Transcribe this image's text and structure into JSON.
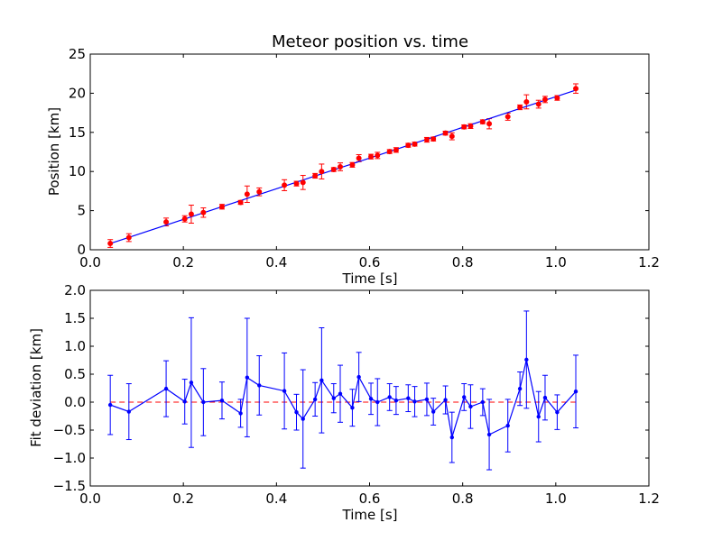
{
  "chart_data": [
    {
      "type": "scatter",
      "title": "Meteor position vs. time",
      "xlabel": "Time [s]",
      "ylabel": "Position [km]",
      "xlim": [
        0.0,
        1.2
      ],
      "ylim": [
        0,
        25
      ],
      "x_ticks": [
        "0.0",
        "0.2",
        "0.4",
        "0.6",
        "0.8",
        "1.0",
        "1.2"
      ],
      "y_ticks": [
        "0",
        "5",
        "10",
        "15",
        "20",
        "25"
      ],
      "grid": false,
      "colors": {
        "points": "#ff0000",
        "errorbars": "#ff0000",
        "fit": "#0000ff"
      },
      "series": [
        {
          "kind": "errorbar-points",
          "x": [
            0.043,
            0.083,
            0.163,
            0.203,
            0.217,
            0.243,
            0.283,
            0.323,
            0.337,
            0.363,
            0.417,
            0.443,
            0.457,
            0.483,
            0.497,
            0.523,
            0.537,
            0.563,
            0.577,
            0.603,
            0.617,
            0.643,
            0.657,
            0.683,
            0.697,
            0.723,
            0.737,
            0.763,
            0.777,
            0.803,
            0.817,
            0.843,
            0.857,
            0.897,
            0.923,
            0.937,
            0.963,
            0.977,
            1.003,
            1.043
          ],
          "y": [
            0.8,
            1.55,
            3.55,
            3.95,
            4.55,
            4.75,
            5.5,
            6.05,
            7.1,
            7.4,
            8.25,
            8.45,
            8.6,
            9.45,
            10.0,
            10.25,
            10.6,
            10.85,
            11.7,
            11.9,
            12.05,
            12.55,
            12.75,
            13.35,
            13.5,
            14.05,
            14.15,
            14.9,
            14.5,
            15.7,
            15.8,
            16.35,
            16.1,
            17.0,
            18.2,
            18.9,
            18.6,
            19.2,
            19.4,
            20.6
          ],
          "yerr": [
            0.5,
            0.5,
            0.5,
            0.4,
            1.15,
            0.6,
            0.3,
            0.25,
            1.05,
            0.5,
            0.7,
            0.3,
            0.9,
            0.3,
            0.95,
            0.25,
            0.5,
            0.3,
            0.45,
            0.3,
            0.4,
            0.25,
            0.3,
            0.25,
            0.25,
            0.3,
            0.25,
            0.25,
            0.45,
            0.25,
            0.3,
            0.25,
            0.65,
            0.45,
            0.3,
            0.9,
            0.5,
            0.4,
            0.3,
            0.6
          ]
        },
        {
          "kind": "fit-line",
          "x": [
            0.043,
            1.043
          ],
          "y": [
            0.8,
            20.4
          ]
        }
      ]
    },
    {
      "type": "line",
      "title": "",
      "xlabel": "Time [s]",
      "ylabel": "Fit deviation [km]",
      "xlim": [
        0.0,
        1.2
      ],
      "ylim": [
        -1.5,
        2.0
      ],
      "x_ticks": [
        "0.0",
        "0.2",
        "0.4",
        "0.6",
        "0.8",
        "1.0",
        "1.2"
      ],
      "y_ticks": [
        "−1.5",
        "−1.0",
        "−0.5",
        "0.0",
        "0.5",
        "1.0",
        "1.5",
        "2.0"
      ],
      "grid": false,
      "colors": {
        "line": "#0000ff",
        "zero_line": "#ff0000"
      },
      "reference_line": {
        "y": 0.0,
        "style": "dashed"
      },
      "series": [
        {
          "kind": "errorbar-line",
          "x": [
            0.043,
            0.083,
            0.163,
            0.203,
            0.217,
            0.243,
            0.283,
            0.323,
            0.337,
            0.363,
            0.417,
            0.443,
            0.457,
            0.483,
            0.497,
            0.523,
            0.537,
            0.563,
            0.577,
            0.603,
            0.617,
            0.643,
            0.657,
            0.683,
            0.697,
            0.723,
            0.737,
            0.763,
            0.777,
            0.803,
            0.817,
            0.843,
            0.857,
            0.897,
            0.923,
            0.937,
            0.963,
            0.977,
            1.003,
            1.043
          ],
          "y": [
            -0.05,
            -0.17,
            0.24,
            0.01,
            0.35,
            0.0,
            0.03,
            -0.2,
            0.44,
            0.3,
            0.2,
            -0.18,
            -0.3,
            0.05,
            0.39,
            0.07,
            0.15,
            -0.1,
            0.45,
            0.06,
            0.0,
            0.09,
            0.03,
            0.07,
            0.01,
            0.05,
            -0.17,
            0.04,
            -0.63,
            0.09,
            -0.08,
            0.0,
            -0.58,
            -0.42,
            0.24,
            0.76,
            -0.26,
            0.08,
            -0.18,
            0.19
          ],
          "yerr": [
            0.53,
            0.5,
            0.5,
            0.4,
            1.16,
            0.6,
            0.33,
            0.25,
            1.06,
            0.53,
            0.68,
            0.32,
            0.88,
            0.3,
            0.94,
            0.26,
            0.51,
            0.33,
            0.44,
            0.28,
            0.42,
            0.24,
            0.25,
            0.24,
            0.27,
            0.29,
            0.24,
            0.25,
            0.45,
            0.24,
            0.39,
            0.24,
            0.63,
            0.47,
            0.3,
            0.87,
            0.45,
            0.4,
            0.31,
            0.65
          ]
        }
      ]
    }
  ]
}
